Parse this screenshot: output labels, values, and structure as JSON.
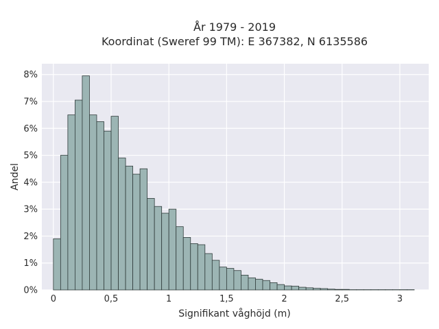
{
  "chart_data": {
    "type": "bar",
    "title_line1": "År 1979 - 2019",
    "title_line2": "Koordinat (Sweref 99 TM): E 367382, N 6135586",
    "xlabel": "Signifikant våghöjd (m)",
    "ylabel": "Andel",
    "xlim": [
      -0.1,
      3.25
    ],
    "ylim": [
      0,
      8.4
    ],
    "bin_width": 0.0625,
    "bin_start": 0.0,
    "values": [
      1.9,
      5.0,
      6.5,
      7.05,
      7.95,
      6.5,
      6.25,
      5.9,
      6.45,
      4.9,
      4.6,
      4.3,
      4.5,
      3.4,
      3.1,
      2.85,
      3.0,
      2.35,
      1.95,
      1.72,
      1.68,
      1.35,
      1.1,
      0.85,
      0.8,
      0.72,
      0.55,
      0.45,
      0.4,
      0.35,
      0.27,
      0.2,
      0.15,
      0.14,
      0.1,
      0.08,
      0.06,
      0.05,
      0.03,
      0.02,
      0.02,
      0.01,
      0.01,
      0.01,
      0.01,
      0.01,
      0.01,
      0.01,
      0.01,
      0.01
    ],
    "x_ticks": [
      {
        "value": 0,
        "label": "0"
      },
      {
        "value": 0.5,
        "label": "0,5"
      },
      {
        "value": 1,
        "label": "1"
      },
      {
        "value": 1.5,
        "label": "1,5"
      },
      {
        "value": 2,
        "label": "2"
      },
      {
        "value": 2.5,
        "label": "2,5"
      },
      {
        "value": 3,
        "label": "3"
      }
    ],
    "y_ticks": [
      {
        "value": 0,
        "label": "0%"
      },
      {
        "value": 1,
        "label": "1%"
      },
      {
        "value": 2,
        "label": "2%"
      },
      {
        "value": 3,
        "label": "3%"
      },
      {
        "value": 4,
        "label": "4%"
      },
      {
        "value": 5,
        "label": "5%"
      },
      {
        "value": 6,
        "label": "6%"
      },
      {
        "value": 7,
        "label": "7%"
      },
      {
        "value": 8,
        "label": "8%"
      }
    ],
    "grid": true,
    "colors": {
      "bar": "#9cb5b4",
      "edge": "#2f3b3a",
      "plot_bg": "#e9e9f1",
      "grid": "#ffffff"
    }
  }
}
